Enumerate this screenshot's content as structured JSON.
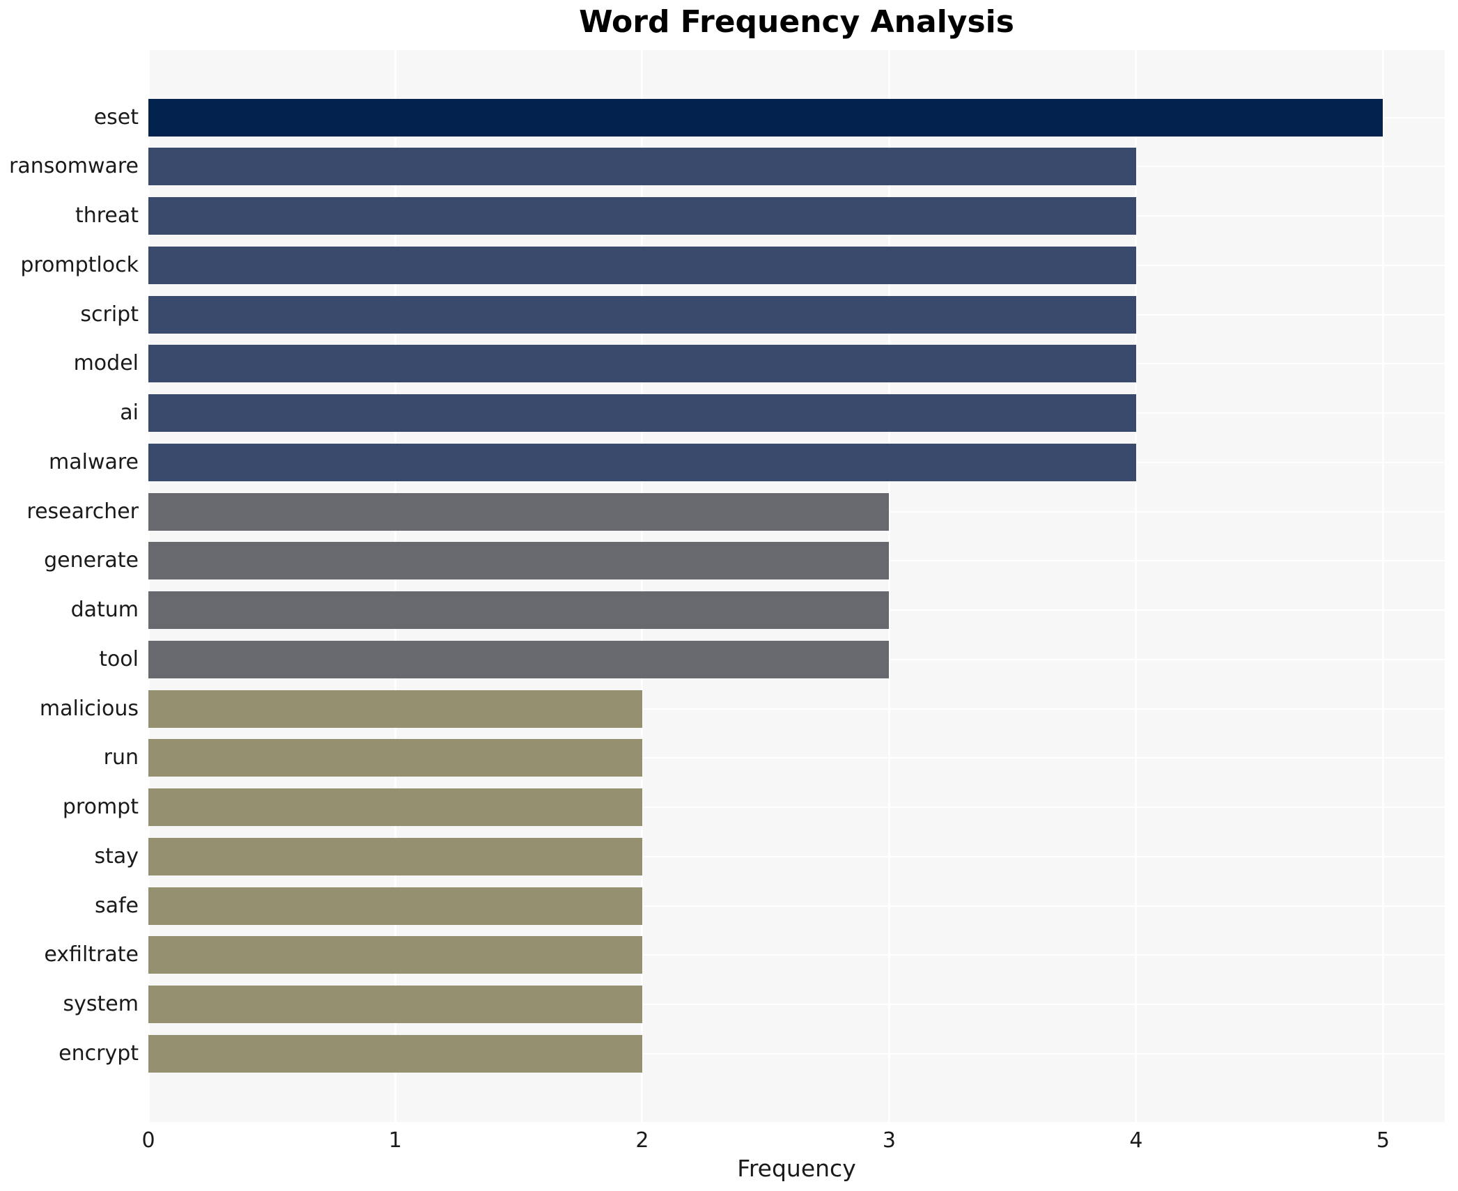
{
  "title": "Word Frequency Analysis",
  "x_axis_label": "Frequency",
  "chart_data": {
    "type": "bar",
    "orientation": "horizontal",
    "title": "Word Frequency Analysis",
    "xlabel": "Frequency",
    "ylabel": "",
    "categories": [
      "eset",
      "ransomware",
      "threat",
      "promptlock",
      "script",
      "model",
      "ai",
      "malware",
      "researcher",
      "generate",
      "datum",
      "tool",
      "malicious",
      "run",
      "prompt",
      "stay",
      "safe",
      "exfiltrate",
      "system",
      "encrypt"
    ],
    "values": [
      5,
      4,
      4,
      4,
      4,
      4,
      4,
      4,
      3,
      3,
      3,
      3,
      2,
      2,
      2,
      2,
      2,
      2,
      2,
      2
    ],
    "bar_colors": [
      "#03234E",
      "#3A4A6C",
      "#3A4A6C",
      "#3A4A6C",
      "#3A4A6C",
      "#3A4A6C",
      "#3A4A6C",
      "#3A4A6C",
      "#67696F",
      "#67696F",
      "#67696F",
      "#67696F",
      "#949070",
      "#949070",
      "#949070",
      "#949070",
      "#949070",
      "#949070",
      "#949070",
      "#949070"
    ],
    "color_groups": {
      "value_5": "#03234E",
      "value_4": "#3A4A6C",
      "value_3": "#67696F",
      "value_2": "#949070"
    },
    "xticks": [
      0,
      1,
      2,
      3,
      4,
      5
    ],
    "xlim": [
      0,
      5.25
    ],
    "grid": true,
    "legend": false,
    "plot_background": "#f7f7f7",
    "grid_color": "#ffffff",
    "text_color": "#1a1a1a"
  }
}
